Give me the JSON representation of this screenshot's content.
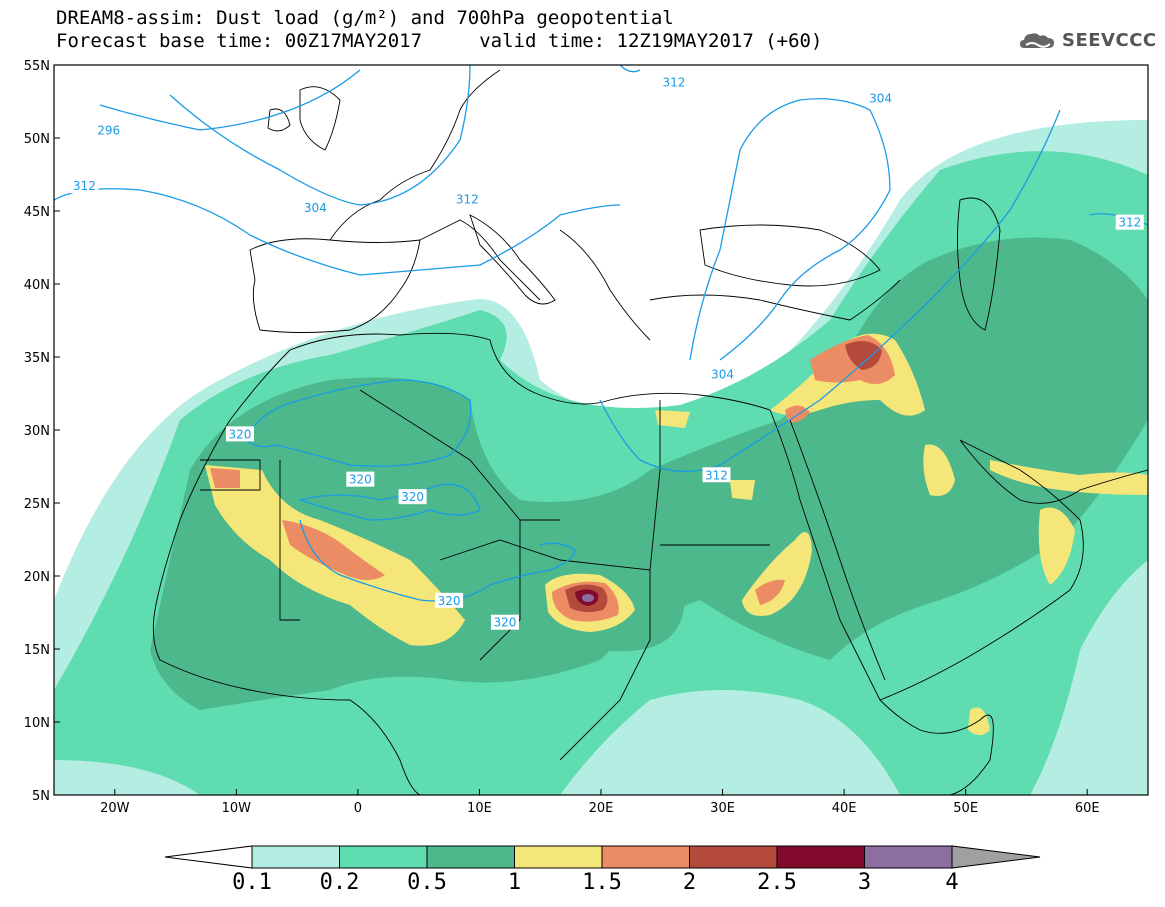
{
  "header": {
    "title_line1": "DREAM8-assim: Dust load (g/m²) and 700hPa geopotential",
    "title_line2": "Forecast base time: 00Z17MAY2017     valid time: 12Z19MAY2017 (+60)",
    "logo_text": "SEEVCCC"
  },
  "axes": {
    "lon_ticks": [
      "20W",
      "10W",
      "0",
      "10E",
      "20E",
      "30E",
      "40E",
      "50E",
      "60E"
    ],
    "lon_values": [
      -20,
      -10,
      0,
      10,
      20,
      30,
      40,
      50,
      60
    ],
    "lat_ticks": [
      "55N",
      "50N",
      "45N",
      "40N",
      "35N",
      "30N",
      "25N",
      "20N",
      "15N",
      "10N",
      "5N"
    ],
    "lat_values": [
      55,
      50,
      45,
      40,
      35,
      30,
      25,
      20,
      15,
      10,
      5
    ],
    "lon_range": [
      -25,
      65
    ],
    "lat_range": [
      5,
      55
    ]
  },
  "colorbar": {
    "labels": [
      "0.1",
      "0.2",
      "0.5",
      "1",
      "1.5",
      "2",
      "2.5",
      "3",
      "4"
    ],
    "colors": [
      "#b4ede1",
      "#5fdcb0",
      "#4db88c",
      "#f5e67a",
      "#ec8c64",
      "#b44a3c",
      "#820a2c",
      "#8c6ea0"
    ]
  },
  "contour_labels": [
    {
      "text": "296",
      "lon": -20.5,
      "lat": 50.5
    },
    {
      "text": "304",
      "lon": -3.5,
      "lat": 45.2
    },
    {
      "text": "312",
      "lon": -22.5,
      "lat": 46.7
    },
    {
      "text": "312",
      "lon": 9,
      "lat": 45.8
    },
    {
      "text": "312",
      "lon": 26,
      "lat": 53.8
    },
    {
      "text": "304",
      "lon": 43,
      "lat": 52.7
    },
    {
      "text": "312",
      "lon": 63.5,
      "lat": 44.2
    },
    {
      "text": "304",
      "lon": 30,
      "lat": 33.8
    },
    {
      "text": "312",
      "lon": 29.5,
      "lat": 26.9
    },
    {
      "text": "320",
      "lon": -9.7,
      "lat": 29.7
    },
    {
      "text": "320",
      "lon": 0.2,
      "lat": 26.6
    },
    {
      "text": "320",
      "lon": 4.5,
      "lat": 25.4
    },
    {
      "text": "320",
      "lon": 7.5,
      "lat": 18.3
    },
    {
      "text": "320",
      "lon": 12.1,
      "lat": 16.8
    }
  ]
}
